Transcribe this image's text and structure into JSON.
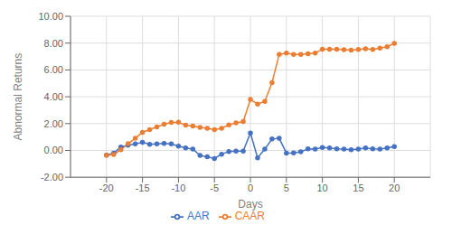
{
  "chart_data": {
    "type": "line",
    "x_label": "Days",
    "y_label": "Abnormal Returns",
    "x": [
      -20,
      -19,
      -18,
      -17,
      -16,
      -15,
      -14,
      -13,
      -12,
      -11,
      -10,
      -9,
      -8,
      -7,
      -6,
      -5,
      -4,
      -3,
      -2,
      -1,
      0,
      1,
      2,
      3,
      4,
      5,
      6,
      7,
      8,
      9,
      10,
      11,
      12,
      13,
      14,
      15,
      16,
      17,
      18,
      19,
      20
    ],
    "series": [
      {
        "name": "AAR",
        "color": "#4472C4",
        "marker": "circle",
        "values": [
          -0.35,
          -0.2,
          0.25,
          0.38,
          0.48,
          0.6,
          0.45,
          0.48,
          0.52,
          0.48,
          0.32,
          0.18,
          0.1,
          -0.38,
          -0.48,
          -0.6,
          -0.28,
          -0.08,
          -0.05,
          -0.05,
          1.3,
          -0.55,
          0.1,
          0.85,
          0.9,
          -0.2,
          -0.18,
          -0.1,
          0.12,
          0.1,
          0.22,
          0.18,
          0.12,
          0.1,
          0.05,
          0.1,
          0.18,
          0.12,
          0.1,
          0.18,
          0.28
        ]
      },
      {
        "name": "CAAR",
        "color": "#ED7D31",
        "marker": "circle",
        "values": [
          -0.35,
          -0.3,
          0.05,
          0.5,
          0.9,
          1.35,
          1.55,
          1.75,
          1.95,
          2.08,
          2.1,
          1.88,
          1.82,
          1.72,
          1.65,
          1.55,
          1.65,
          1.9,
          2.05,
          2.15,
          3.8,
          3.45,
          3.65,
          5.05,
          7.15,
          7.25,
          7.15,
          7.15,
          7.2,
          7.25,
          7.55,
          7.55,
          7.55,
          7.5,
          7.48,
          7.52,
          7.58,
          7.52,
          7.62,
          7.72,
          7.98
        ]
      }
    ],
    "xlim": [
      -25,
      25
    ],
    "ylim": [
      -2.0,
      10.0
    ],
    "xticks": [
      -20,
      -15,
      -10,
      -5,
      0,
      5,
      10,
      15,
      20
    ],
    "yticks": [
      {
        "value": -2,
        "label": "-2.00"
      },
      {
        "value": 0,
        "label": "0.00"
      },
      {
        "value": 2,
        "label": "2.00"
      },
      {
        "value": 4,
        "label": "4.00"
      },
      {
        "value": 6,
        "label": "6.00"
      },
      {
        "value": 8,
        "label": "8.00"
      },
      {
        "value": 10,
        "label": "10.00"
      }
    ],
    "grid": true,
    "legend": "bottom"
  }
}
